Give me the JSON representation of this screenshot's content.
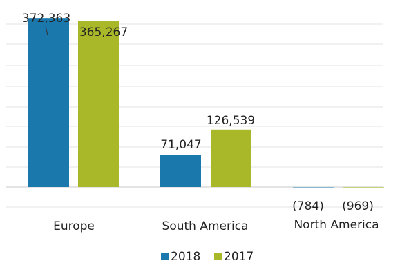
{
  "chart_data": {
    "type": "bar",
    "categories": [
      "Europe",
      "South America",
      "North America"
    ],
    "series": [
      {
        "name": "2018",
        "color": "#1b78ad",
        "values": [
          372363,
          71047,
          -784
        ],
        "labels": [
          "372,363",
          "71,047",
          "(784)"
        ]
      },
      {
        "name": "2017",
        "color": "#a9b829",
        "values": [
          365267,
          126539,
          -969
        ],
        "labels": [
          "365,267",
          "126,539",
          "(969)"
        ]
      }
    ],
    "ylim": [
      -50000,
      400000
    ],
    "grid": true,
    "legend": "bottom"
  }
}
